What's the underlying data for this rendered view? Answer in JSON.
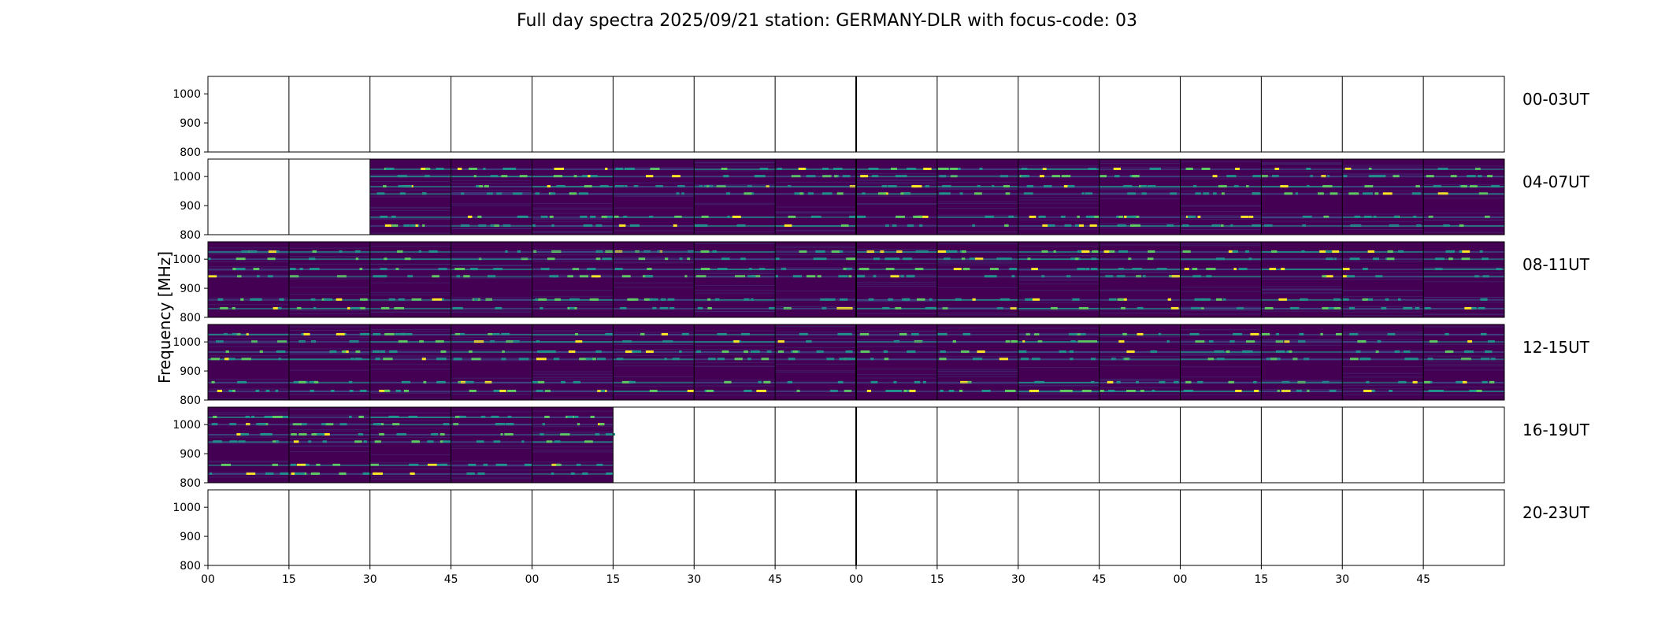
{
  "chart_data": {
    "type": "heatmap",
    "title": "Full day spectra 2025/09/21 station: GERMANY-DLR with focus-code: 03",
    "ylabel": "Frequency [MHz]",
    "ylim": [
      800,
      1060
    ],
    "yticks": [
      800,
      900,
      1000
    ],
    "xtick_labels": [
      "00",
      "15",
      "30",
      "45",
      "00",
      "15",
      "30",
      "45",
      "00",
      "15",
      "30",
      "45",
      "00",
      "15",
      "30",
      "45"
    ],
    "minutes_per_block": 15,
    "colormap": "viridis",
    "colors": {
      "low": "#440154",
      "mid1": "#3b528b",
      "mid2": "#21918c",
      "high1": "#5ec962",
      "high2": "#fde725",
      "axis": "#000000",
      "background": "#ffffff"
    },
    "band_centers_mhz": [
      1025,
      1000,
      965,
      940,
      860,
      830
    ],
    "rows": [
      {
        "label": "00-03UT",
        "blocks_with_data": []
      },
      {
        "label": "04-07UT",
        "blocks_with_data": [
          2,
          3,
          4,
          5,
          6,
          7,
          8,
          9,
          10,
          11,
          12,
          13,
          14,
          15
        ]
      },
      {
        "label": "08-11UT",
        "blocks_with_data": [
          0,
          1,
          2,
          3,
          4,
          5,
          6,
          7,
          8,
          9,
          10,
          11,
          12,
          13,
          14,
          15
        ]
      },
      {
        "label": "12-15UT",
        "blocks_with_data": [
          0,
          1,
          2,
          3,
          4,
          5,
          6,
          7,
          8,
          9,
          10,
          11,
          12,
          13,
          14,
          15
        ]
      },
      {
        "label": "16-19UT",
        "blocks_with_data": [
          0,
          1,
          2,
          3,
          4
        ]
      },
      {
        "label": "20-23UT",
        "blocks_with_data": []
      }
    ]
  }
}
